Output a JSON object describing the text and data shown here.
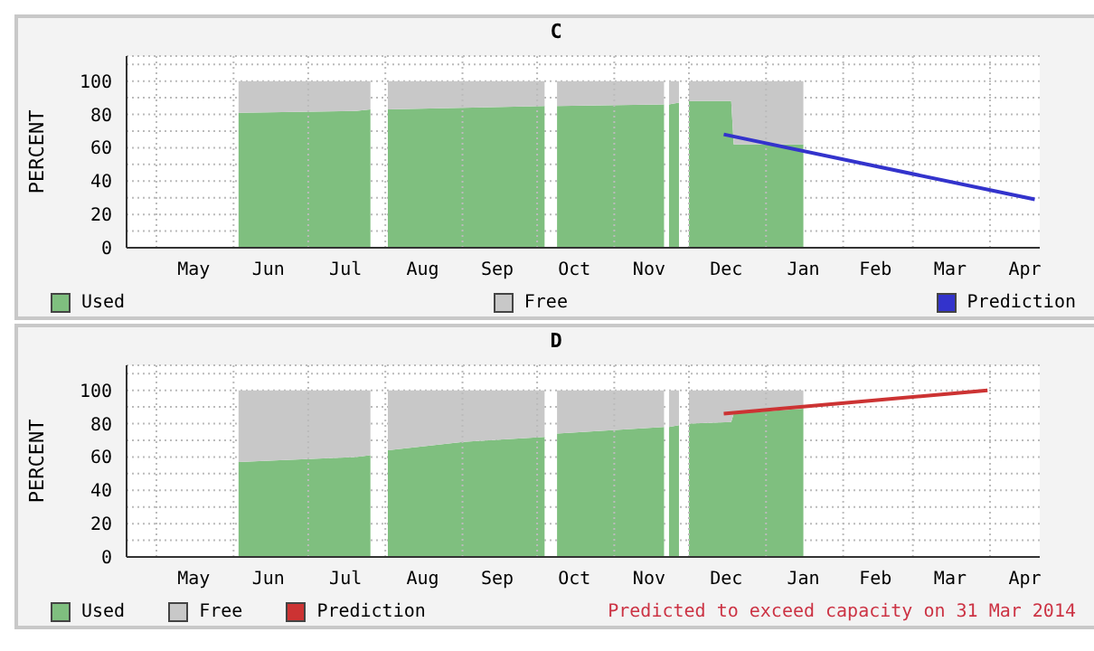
{
  "chart_data": [
    {
      "type": "area",
      "title": "C",
      "ylabel": "PERCENT",
      "stacked": true,
      "grid": true,
      "legend": "bottom",
      "x": [
        "2013-06-03",
        "2013-07-20",
        "2013-07-26",
        "2013-07-27",
        "2013-08-02",
        "2013-09-01",
        "2013-10-04",
        "2013-10-05",
        "2013-10-09",
        "2013-11-21",
        "2013-11-22",
        "2013-11-23",
        "2013-11-27",
        "2013-11-28",
        "2013-12-01",
        "2013-12-18",
        "2013-12-19",
        "2014-01-16"
      ],
      "series": [
        {
          "name": "Used",
          "color": "#7fbf7f",
          "values": [
            81,
            82,
            83,
            null,
            83,
            84,
            85,
            null,
            85,
            86,
            null,
            86,
            87,
            null,
            88,
            88,
            62,
            62
          ]
        },
        {
          "name": "Free",
          "color": "#c8c8c8",
          "values": [
            19,
            18,
            17,
            null,
            17,
            16,
            15,
            null,
            15,
            14,
            null,
            14,
            13,
            null,
            12,
            12,
            38,
            38
          ]
        },
        {
          "name": "Prediction",
          "type": "line",
          "color": "#3333cc",
          "x": [
            "2013-12-15",
            "2014-04-19"
          ],
          "values": [
            68,
            29
          ]
        }
      ],
      "xlim": [
        "2013-04-19",
        "2014-04-21"
      ],
      "xticks": [
        {
          "value": "2013-05-01",
          "label": null
        },
        {
          "value": "2013-06-01",
          "label": null
        },
        {
          "value": "2013-07-01",
          "label": null
        },
        {
          "value": "2013-08-01",
          "label": null
        },
        {
          "value": "2013-09-01",
          "label": null
        },
        {
          "value": "2013-10-01",
          "label": null
        },
        {
          "value": "2013-11-01",
          "label": null
        },
        {
          "value": "2013-12-01",
          "label": null
        },
        {
          "value": "2014-01-01",
          "label": null
        },
        {
          "value": "2014-02-01",
          "label": null
        },
        {
          "value": "2014-03-01",
          "label": null
        },
        {
          "value": "2014-04-01",
          "label": null
        },
        {
          "value": "2013-05-16",
          "label": "May"
        },
        {
          "value": "2013-06-15",
          "label": "Jun"
        },
        {
          "value": "2013-07-16",
          "label": "Jul"
        },
        {
          "value": "2013-08-16",
          "label": "Aug"
        },
        {
          "value": "2013-09-15",
          "label": "Sep"
        },
        {
          "value": "2013-10-16",
          "label": "Oct"
        },
        {
          "value": "2013-11-15",
          "label": "Nov"
        },
        {
          "value": "2013-12-16",
          "label": "Dec"
        },
        {
          "value": "2014-01-16",
          "label": "Jan"
        },
        {
          "value": "2014-02-14",
          "label": "Feb"
        },
        {
          "value": "2014-03-16",
          "label": "Mar"
        },
        {
          "value": "2014-04-15",
          "label": "Apr"
        }
      ],
      "ylim": [
        0,
        115
      ],
      "yticks": [
        0,
        {
          "value": 10,
          "label": null
        },
        20,
        {
          "value": 30,
          "label": null
        },
        40,
        {
          "value": 50,
          "label": null
        },
        60,
        {
          "value": 70,
          "label": null
        },
        80,
        {
          "value": 90,
          "label": null
        },
        100,
        {
          "value": 110,
          "label": null
        }
      ]
    },
    {
      "type": "area",
      "title": "D",
      "ylabel": "PERCENT",
      "stacked": true,
      "grid": true,
      "legend": "bottom",
      "x": [
        "2013-06-03",
        "2013-07-20",
        "2013-07-26",
        "2013-07-27",
        "2013-08-02",
        "2013-09-01",
        "2013-10-04",
        "2013-10-05",
        "2013-10-09",
        "2013-11-21",
        "2013-11-22",
        "2013-11-23",
        "2013-11-27",
        "2013-11-28",
        "2013-12-01",
        "2013-12-18",
        "2013-12-19",
        "2014-01-16"
      ],
      "series": [
        {
          "name": "Used",
          "color": "#7fbf7f",
          "values": [
            57,
            60,
            61,
            null,
            64,
            69,
            72,
            null,
            74,
            78,
            null,
            78,
            79,
            null,
            80,
            81,
            86,
            89
          ]
        },
        {
          "name": "Free",
          "color": "#c8c8c8",
          "values": [
            43,
            40,
            39,
            null,
            36,
            31,
            28,
            null,
            26,
            22,
            null,
            22,
            21,
            null,
            20,
            19,
            14,
            11
          ]
        },
        {
          "name": "Prediction",
          "type": "line",
          "color": "#cc3333",
          "x": [
            "2013-12-15",
            "2014-03-31"
          ],
          "values": [
            86,
            100
          ]
        }
      ],
      "annotations": [
        "Predicted to exceed capacity on 31 Mar 2014"
      ],
      "xlim": [
        "2013-04-19",
        "2014-04-21"
      ],
      "xticks": [
        {
          "value": "2013-05-01",
          "label": null
        },
        {
          "value": "2013-06-01",
          "label": null
        },
        {
          "value": "2013-07-01",
          "label": null
        },
        {
          "value": "2013-08-01",
          "label": null
        },
        {
          "value": "2013-09-01",
          "label": null
        },
        {
          "value": "2013-10-01",
          "label": null
        },
        {
          "value": "2013-11-01",
          "label": null
        },
        {
          "value": "2013-12-01",
          "label": null
        },
        {
          "value": "2014-01-01",
          "label": null
        },
        {
          "value": "2014-02-01",
          "label": null
        },
        {
          "value": "2014-03-01",
          "label": null
        },
        {
          "value": "2014-04-01",
          "label": null
        },
        {
          "value": "2013-05-16",
          "label": "May"
        },
        {
          "value": "2013-06-15",
          "label": "Jun"
        },
        {
          "value": "2013-07-16",
          "label": "Jul"
        },
        {
          "value": "2013-08-16",
          "label": "Aug"
        },
        {
          "value": "2013-09-15",
          "label": "Sep"
        },
        {
          "value": "2013-10-16",
          "label": "Oct"
        },
        {
          "value": "2013-11-15",
          "label": "Nov"
        },
        {
          "value": "2013-12-16",
          "label": "Dec"
        },
        {
          "value": "2014-01-16",
          "label": "Jan"
        },
        {
          "value": "2014-02-14",
          "label": "Feb"
        },
        {
          "value": "2014-03-16",
          "label": "Mar"
        },
        {
          "value": "2014-04-15",
          "label": "Apr"
        }
      ],
      "ylim": [
        0,
        115
      ],
      "yticks": [
        0,
        {
          "value": 10,
          "label": null
        },
        20,
        {
          "value": 30,
          "label": null
        },
        40,
        {
          "value": 50,
          "label": null
        },
        60,
        {
          "value": 70,
          "label": null
        },
        80,
        {
          "value": 90,
          "label": null
        },
        100,
        {
          "value": 110,
          "label": null
        }
      ]
    }
  ]
}
